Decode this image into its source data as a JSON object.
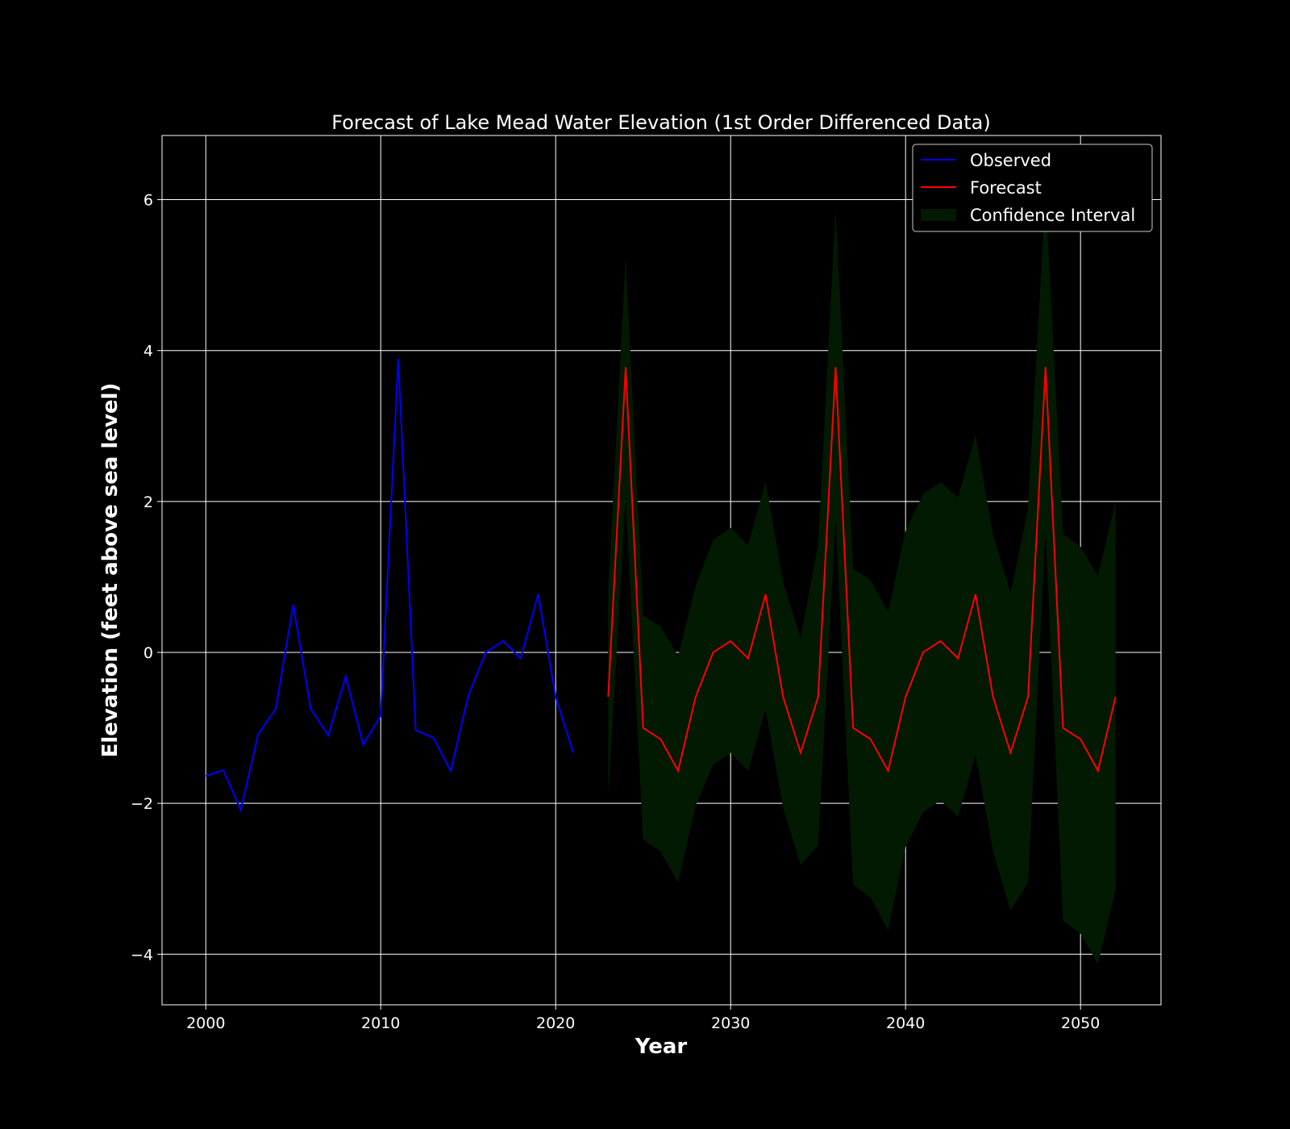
{
  "chart_data": {
    "type": "line",
    "title": "Forecast of Lake Mead Water Elevation (1st Order Differenced Data)",
    "xlabel": "Year",
    "ylabel": "Elevation (feet above sea level)",
    "xlim": [
      1997.5,
      2054.6
    ],
    "ylim": [
      -4.67,
      6.85
    ],
    "xticks": [
      2000,
      2010,
      2020,
      2030,
      2040,
      2050
    ],
    "yticks": [
      -4,
      -2,
      0,
      2,
      4,
      6
    ],
    "ytick_labels": [
      "−4",
      "−2",
      "0",
      "2",
      "4",
      "6"
    ],
    "grid": true,
    "legend_position": "top-right",
    "colors": {
      "background": "#000000",
      "observed": "#0000ff",
      "forecast": "#ff0000",
      "confidence": "#021a02",
      "grid": "#ffffff"
    },
    "legend": [
      {
        "label": "Observed",
        "kind": "line",
        "color": "#0000ff"
      },
      {
        "label": "Forecast",
        "kind": "line",
        "color": "#ff0000"
      },
      {
        "label": "Confidence Interval",
        "kind": "patch",
        "color": "#021a02"
      }
    ],
    "observed": {
      "name": "Observed",
      "x": [
        2000,
        2001,
        2002,
        2003,
        2004,
        2005,
        2006,
        2007,
        2008,
        2009,
        2010,
        2011,
        2012,
        2013,
        2014,
        2015,
        2016,
        2017,
        2018,
        2019,
        2020,
        2021
      ],
      "y": [
        -1.64,
        -1.56,
        -2.09,
        -1.08,
        -0.75,
        0.63,
        -0.75,
        -1.1,
        -0.32,
        -1.22,
        -0.84,
        3.89,
        -1.03,
        -1.13,
        -1.57,
        -0.58,
        0.0,
        0.15,
        -0.08,
        0.77,
        -0.59,
        -1.33
      ]
    },
    "forecast": {
      "name": "Forecast",
      "x": [
        2023,
        2024,
        2025,
        2026,
        2027,
        2028,
        2029,
        2030,
        2031,
        2032,
        2033,
        2034,
        2035,
        2036,
        2037,
        2038,
        2039,
        2040,
        2041,
        2042,
        2043,
        2044,
        2045,
        2046,
        2047,
        2048,
        2049,
        2050,
        2051,
        2052
      ],
      "y": [
        -0.59,
        3.78,
        -1.0,
        -1.15,
        -1.57,
        -0.59,
        0.0,
        0.15,
        -0.08,
        0.77,
        -0.59,
        -1.33,
        -0.59,
        3.78,
        -1.0,
        -1.15,
        -1.57,
        -0.59,
        0.0,
        0.15,
        -0.08,
        0.77,
        -0.59,
        -1.33,
        -0.59,
        3.78,
        -1.0,
        -1.15,
        -1.57,
        -0.59
      ]
    },
    "confidence_interval": {
      "name": "Confidence Interval",
      "upper": [
        0.8,
        5.23,
        0.49,
        0.34,
        -0.05,
        0.88,
        1.49,
        1.65,
        1.42,
        2.26,
        0.93,
        0.19,
        1.43,
        5.87,
        1.11,
        0.96,
        0.53,
        1.61,
        2.1,
        2.26,
        2.05,
        2.88,
        1.56,
        0.79,
        1.91,
        6.09,
        1.57,
        1.4,
        1.01,
        2.0
      ],
      "lower": [
        -1.89,
        2.03,
        -2.48,
        -2.64,
        -3.05,
        -2.03,
        -1.49,
        -1.33,
        -1.57,
        -0.75,
        -2.06,
        -2.82,
        -2.56,
        1.78,
        -3.08,
        -3.25,
        -3.68,
        -2.58,
        -2.12,
        -1.96,
        -2.18,
        -1.35,
        -2.64,
        -3.42,
        -3.05,
        1.61,
        -3.55,
        -3.73,
        -4.13,
        -3.14
      ]
    }
  }
}
